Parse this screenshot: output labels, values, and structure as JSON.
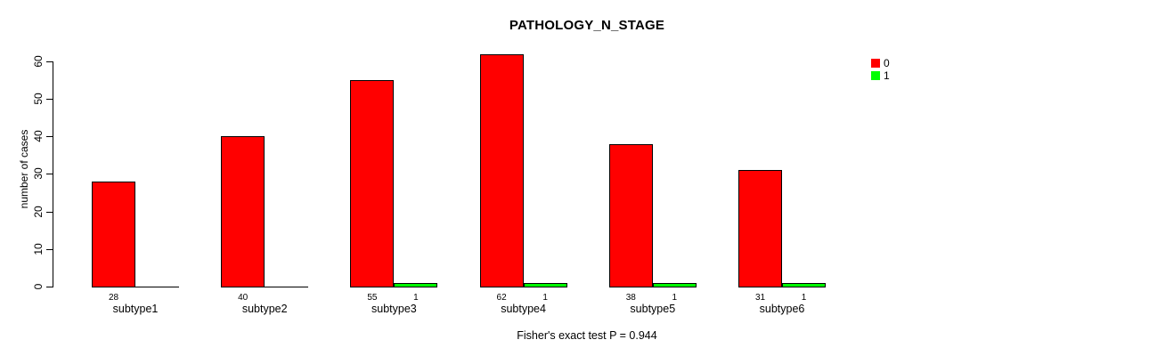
{
  "chart_data": {
    "type": "bar",
    "title": "PATHOLOGY_N_STAGE",
    "xlabel": "",
    "ylabel": "number of cases",
    "categories": [
      "subtype1",
      "subtype2",
      "subtype3",
      "subtype4",
      "subtype5",
      "subtype6"
    ],
    "series": [
      {
        "name": "0",
        "color": "#FF0000",
        "values": [
          28,
          40,
          55,
          62,
          38,
          31
        ]
      },
      {
        "name": "1",
        "color": "#00FF00",
        "values": [
          0,
          0,
          1,
          1,
          1,
          1
        ]
      }
    ],
    "yticks": [
      0,
      10,
      20,
      30,
      40,
      50,
      60
    ],
    "ylim": [
      0,
      62
    ],
    "grid": false,
    "legend_position": "top-right",
    "annotation": "Fisher's exact test P = 0.944"
  }
}
